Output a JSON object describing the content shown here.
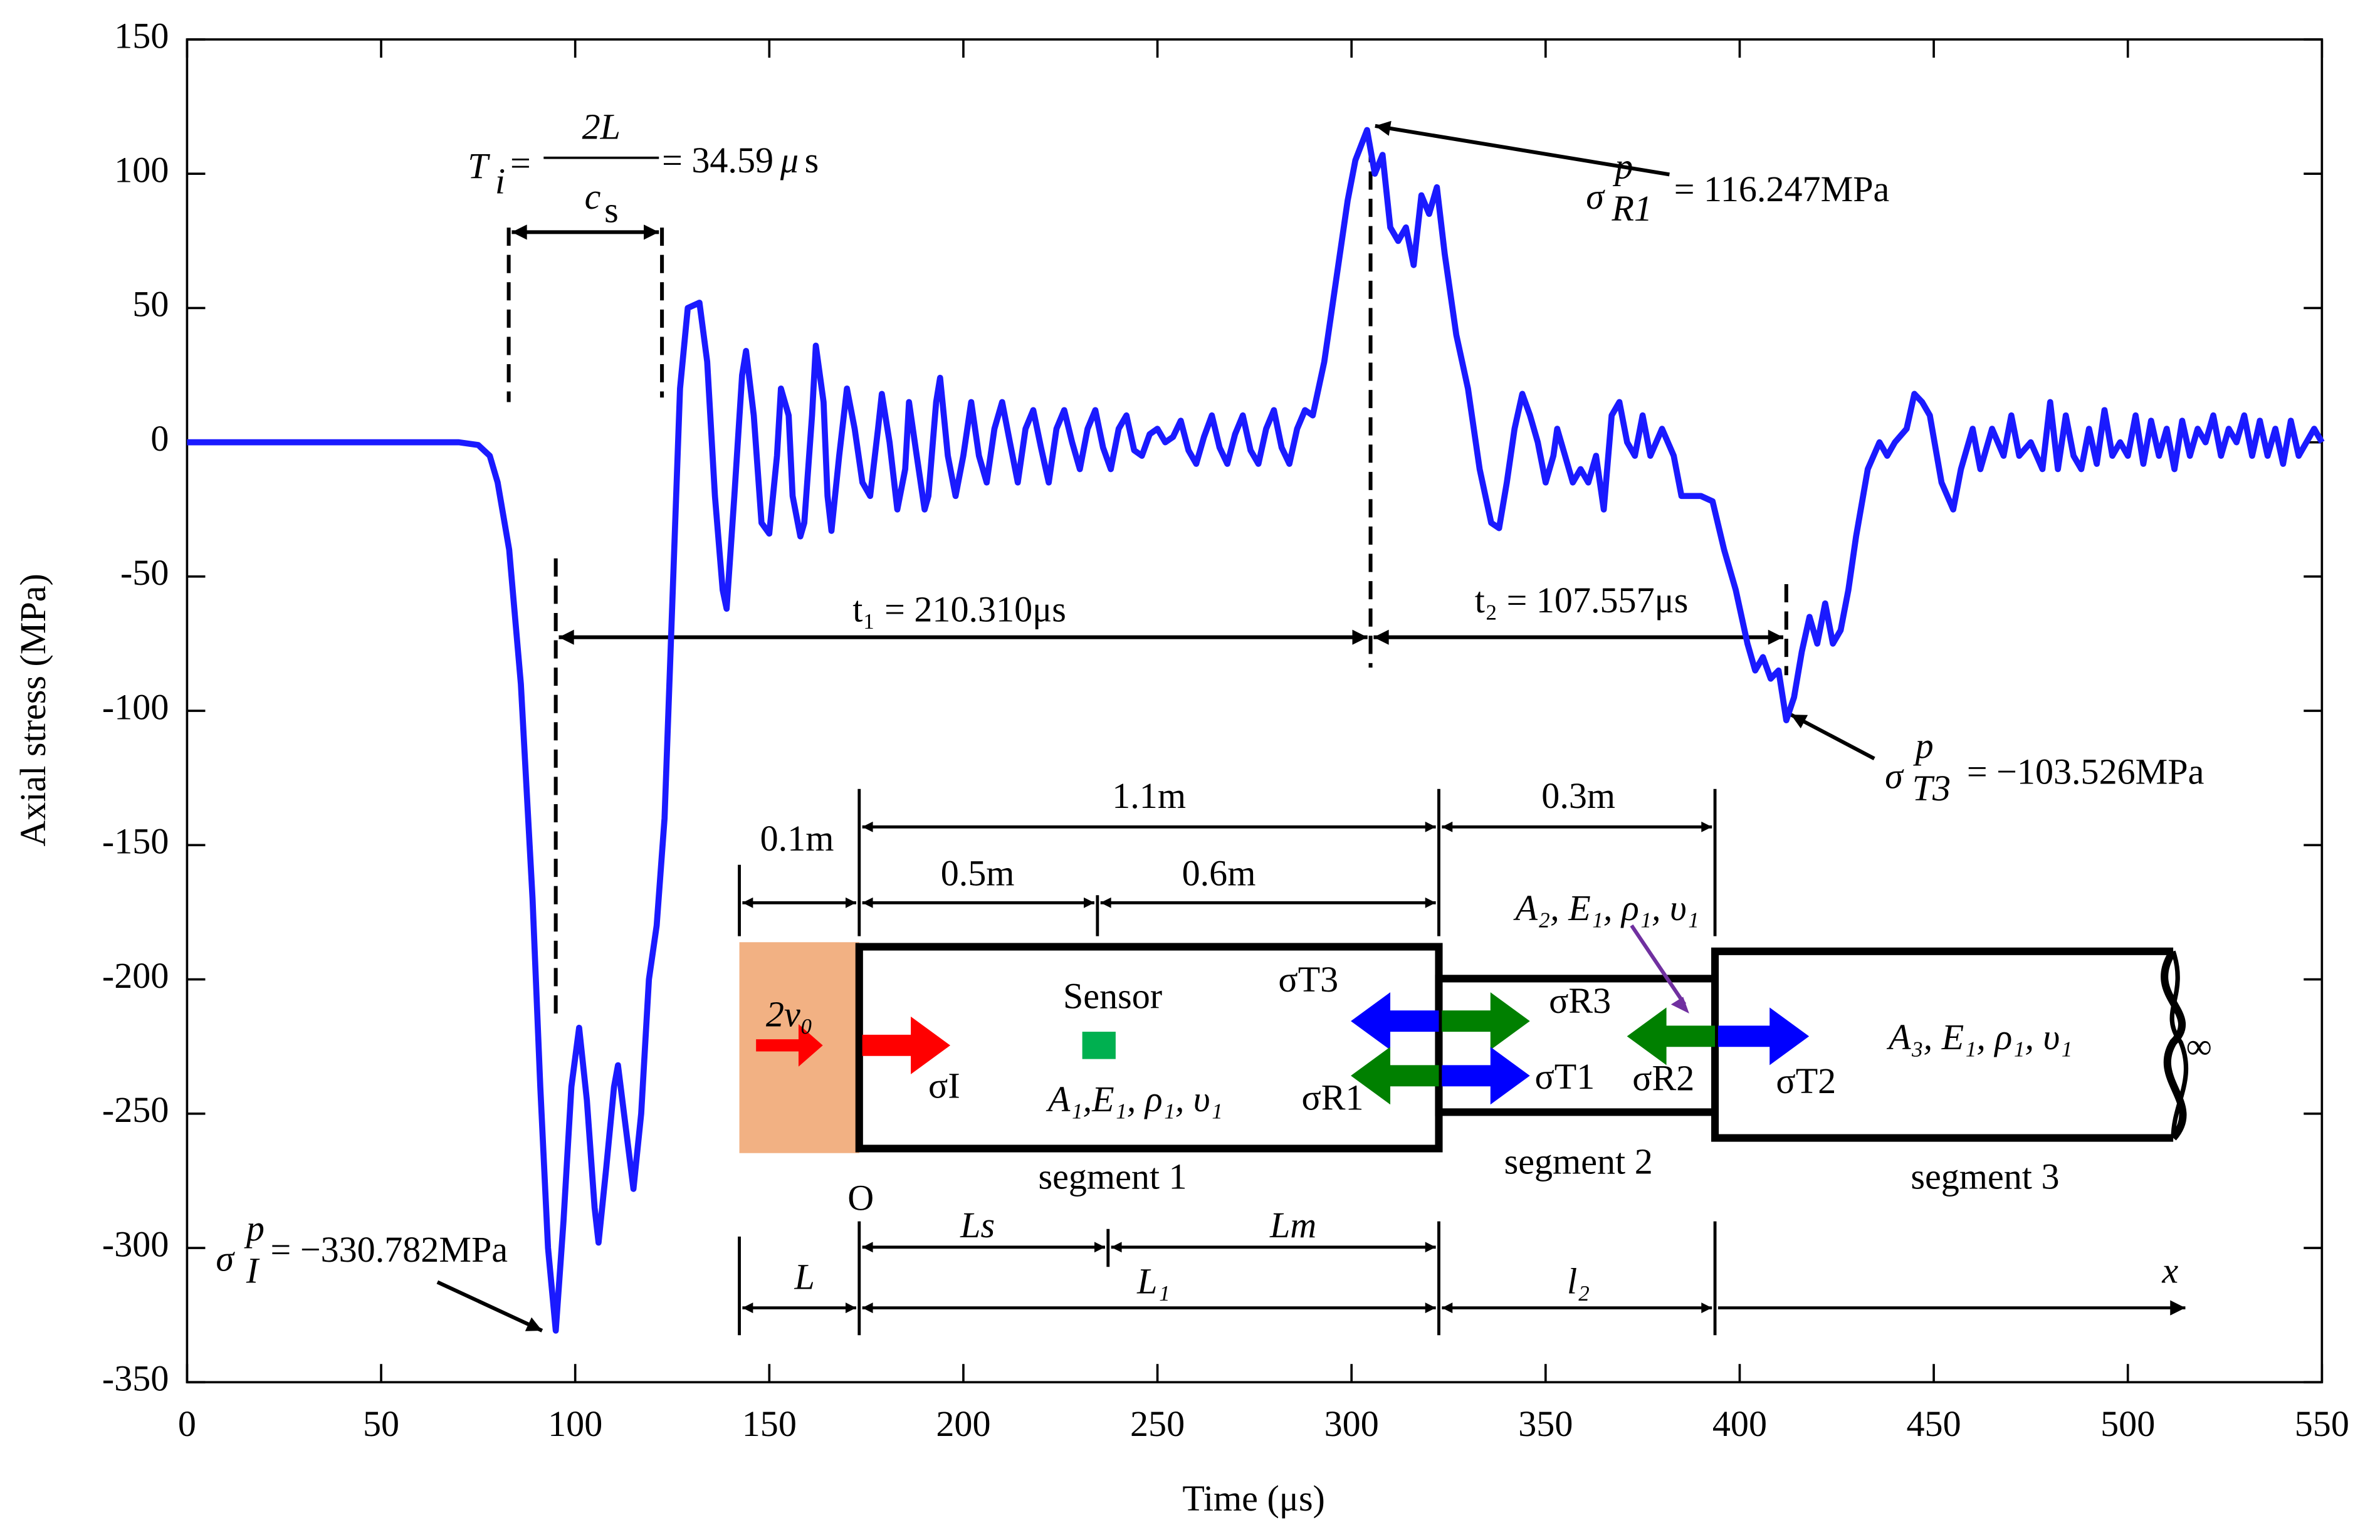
{
  "chart_data": {
    "type": "line",
    "xlabel": "Time (μs)",
    "ylabel": "Axial stress (MPa)",
    "xlim": [
      0,
      550
    ],
    "ylim": [
      -350,
      150
    ],
    "xticks": [
      0,
      50,
      100,
      150,
      200,
      250,
      300,
      350,
      400,
      450,
      500,
      550
    ],
    "yticks": [
      -350,
      -300,
      -250,
      -200,
      -150,
      -100,
      -50,
      0,
      50,
      100,
      150
    ],
    "series": [
      {
        "color": "#1a1aff",
        "x": [
          0,
          70,
          75,
          78,
          80,
          83,
          86,
          89,
          91,
          93,
          95,
          97,
          99,
          101,
          103,
          105,
          106,
          108,
          110,
          111,
          113,
          115,
          117,
          119,
          121,
          123,
          125,
          127,
          129,
          132,
          134,
          136,
          138,
          139,
          141,
          143,
          144,
          146,
          148,
          150,
          152,
          153,
          155,
          156,
          158,
          159,
          161,
          162,
          164,
          165,
          166,
          168,
          170,
          172,
          174,
          176,
          178,
          179,
          181,
          183,
          185,
          186,
          188,
          190,
          191,
          193,
          194,
          196,
          198,
          200,
          202,
          204,
          206,
          208,
          210,
          212,
          214,
          216,
          218,
          220,
          222,
          224,
          226,
          228,
          230,
          232,
          234,
          236,
          238,
          240,
          242,
          244,
          246,
          248,
          250,
          252,
          254,
          256,
          258,
          260,
          262,
          264,
          266,
          268,
          270,
          272,
          274,
          276,
          278,
          280,
          282,
          284,
          286,
          288,
          290,
          293,
          296,
          299,
          301,
          304,
          306,
          308,
          310,
          312,
          314,
          316,
          318,
          320,
          322,
          324,
          327,
          330,
          333,
          336,
          338,
          340,
          342,
          344,
          346,
          348,
          350,
          352,
          353,
          355,
          357,
          359,
          361,
          363,
          365,
          367,
          369,
          371,
          373,
          375,
          377,
          380,
          383,
          385,
          390,
          393,
          396,
          399,
          402,
          404,
          406,
          408,
          410,
          412,
          414,
          416,
          418,
          420,
          422,
          424,
          426,
          428,
          430,
          433,
          436,
          438,
          440,
          443,
          445,
          447,
          449,
          452,
          455,
          457,
          460,
          462,
          465,
          468,
          470,
          472,
          475,
          478,
          480,
          482,
          484,
          486,
          488,
          490,
          492,
          494,
          496,
          498,
          500,
          502,
          504,
          506,
          508,
          510,
          512,
          514,
          516,
          518,
          520,
          522,
          524,
          526,
          528,
          530,
          532,
          534,
          536,
          538,
          540,
          542,
          544,
          546,
          548,
          550
        ],
        "values": [
          0,
          0,
          -1,
          -5,
          -15,
          -40,
          -90,
          -170,
          -240,
          -300,
          -330.782,
          -290,
          -240,
          -218,
          -245,
          -285,
          -298,
          -270,
          -240,
          -232,
          -255,
          -278,
          -250,
          -200,
          -180,
          -140,
          -60,
          20,
          50,
          52,
          30,
          -20,
          -55,
          -62,
          -20,
          25,
          34,
          10,
          -30,
          -34,
          -5,
          20,
          10,
          -20,
          -35,
          -30,
          10,
          36,
          15,
          -20,
          -33,
          -5,
          20,
          5,
          -15,
          -20,
          5,
          18,
          0,
          -25,
          -10,
          15,
          -5,
          -25,
          -20,
          15,
          24,
          -5,
          -20,
          -5,
          15,
          -5,
          -15,
          5,
          15,
          0,
          -15,
          5,
          12,
          -2,
          -15,
          5,
          12,
          0,
          -10,
          5,
          12,
          -2,
          -10,
          5,
          10,
          -3,
          -5,
          3,
          5,
          0,
          2,
          8,
          -3,
          -8,
          2,
          10,
          -2,
          -8,
          3,
          10,
          -3,
          -8,
          5,
          12,
          -2,
          -8,
          5,
          12,
          10,
          30,
          60,
          90,
          105,
          116.247,
          100,
          107,
          80,
          75,
          80,
          66,
          92,
          85,
          95,
          70,
          40,
          20,
          -10,
          -30,
          -32,
          -15,
          5,
          18,
          10,
          0,
          -15,
          -5,
          5,
          -5,
          -15,
          -10,
          -15,
          -5,
          -25,
          10,
          15,
          0,
          -5,
          10,
          -5,
          5,
          -5,
          -20,
          -20,
          -22,
          -40,
          -55,
          -75,
          -85,
          -80,
          -88,
          -85,
          -103.526,
          -95,
          -78,
          -65,
          -75,
          -60,
          -75,
          -70,
          -55,
          -35,
          -10,
          0,
          -5,
          0,
          5,
          18,
          15,
          10,
          -15,
          -25,
          -10,
          5,
          -10,
          5,
          -5,
          10,
          -5,
          0,
          -10,
          15,
          -10,
          10,
          -5,
          -10,
          5,
          -8,
          12,
          -5,
          0,
          -5,
          10,
          -8,
          8,
          -5,
          5,
          -10,
          8,
          -5,
          5,
          0,
          10,
          -5,
          5,
          0,
          10,
          -5,
          8,
          -5,
          5,
          -8,
          8,
          -5,
          0,
          5,
          0
        ]
      }
    ],
    "annotations": [
      "T",
      "i",
      "=",
      "2L",
      "c",
      "s",
      "= 34.59",
      "μ",
      "s",
      "σ",
      "p",
      "R1",
      "= 116.247MPa",
      "σ",
      "p",
      "T3",
      "= −103.526MPa",
      "σ",
      "p",
      "I",
      "= −330.782MPa",
      "t₁ = 210.310μs",
      "t₂ = 107.557μs"
    ],
    "inset": {
      "labels": [
        "0.1m",
        "1.1m",
        "0.5m",
        "0.6m",
        "0.3m",
        "2v₀",
        "Sensor",
        "σI",
        "A₁,E₁, ρ₁, υ₁",
        "σT3",
        "σR3",
        "σR1",
        "σT1",
        "σR2",
        "σT2",
        "A₂, E₁, ρ₁, υ₁",
        "A₃, E₁, ρ₁, υ₁",
        "∞",
        "segment 1",
        "segment 2",
        "segment 3",
        "O",
        "L",
        "Ls",
        "Lm",
        "L₁",
        "l₂",
        "x"
      ]
    }
  }
}
